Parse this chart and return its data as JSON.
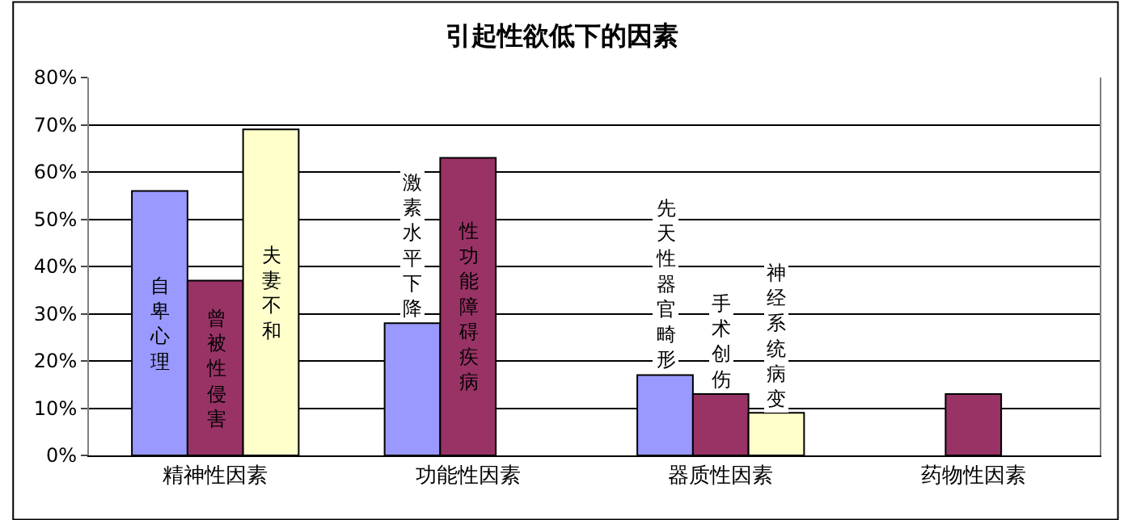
{
  "chart_data": {
    "type": "bar",
    "title": "引起性欲低下的因素",
    "categories": [
      "精神性因素",
      "功能性因素",
      "器质性因素",
      "药物性因素"
    ],
    "series": [
      {
        "color": "#9999ff",
        "values": [
          56,
          28,
          17,
          null
        ],
        "value_labels": [
          "自卑心理",
          "激素水平下降",
          "先天性器官畸形",
          null
        ]
      },
      {
        "color": "#993366",
        "values": [
          37,
          63,
          13,
          13
        ],
        "value_labels": [
          "曾被性侵害",
          "性功能障碍疾病",
          "手术创伤",
          null
        ]
      },
      {
        "color": "#ffffcc",
        "values": [
          69,
          null,
          9,
          null
        ],
        "value_labels": [
          "夫妻不和",
          null,
          "神经系统病变",
          null
        ]
      }
    ],
    "ylim": [
      0,
      80
    ],
    "yticks": [
      {
        "value": 0,
        "label": "0%"
      },
      {
        "value": 10,
        "label": "10%"
      },
      {
        "value": 20,
        "label": "20%"
      },
      {
        "value": 30,
        "label": "30%"
      },
      {
        "value": 40,
        "label": "40%"
      },
      {
        "value": 50,
        "label": "50%"
      },
      {
        "value": 60,
        "label": "60%"
      },
      {
        "value": 70,
        "label": "70%"
      },
      {
        "value": 80,
        "label": "80%"
      }
    ],
    "grid": "y"
  }
}
